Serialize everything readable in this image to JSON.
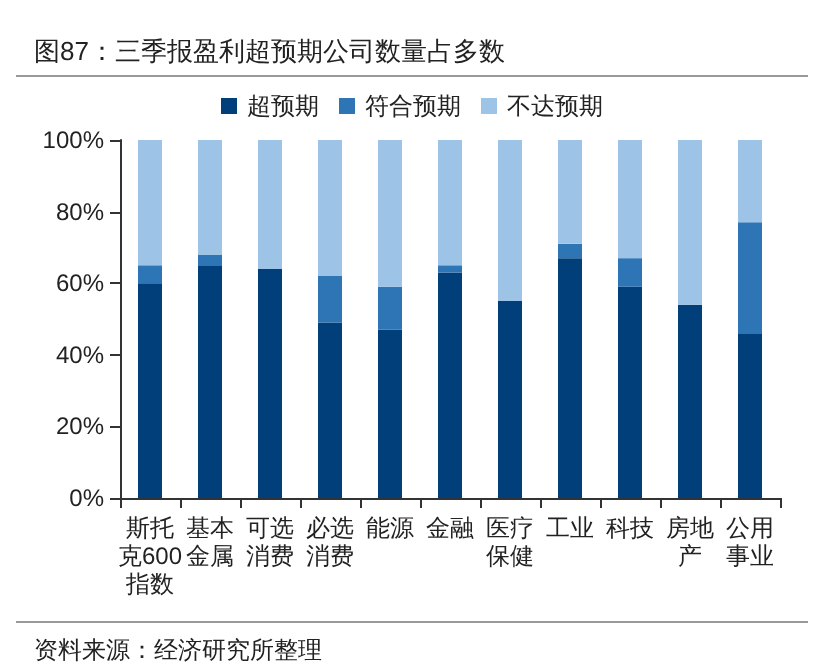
{
  "chart_data": {
    "type": "bar",
    "title": "图87：三季报盈利超预期公司数量占多数",
    "stacked": true,
    "categories": [
      "斯托克600指数",
      "基本金属",
      "可选消费",
      "必选消费",
      "能源",
      "金融",
      "医疗保健",
      "工业",
      "科技",
      "房地产",
      "公用事业"
    ],
    "series": [
      {
        "name": "超预期",
        "color": "#003f7a",
        "values": [
          60,
          65,
          64,
          49,
          47,
          63,
          55,
          67,
          59,
          54,
          46
        ]
      },
      {
        "name": "符合预期",
        "color": "#2e75b6",
        "values": [
          5,
          3,
          0,
          13,
          12,
          2,
          0,
          4,
          8,
          0,
          31
        ]
      },
      {
        "name": "不达预期",
        "color": "#9dc3e6",
        "values": [
          35,
          32,
          36,
          38,
          41,
          35,
          45,
          29,
          33,
          46,
          23
        ]
      }
    ],
    "ylim": [
      0,
      100
    ],
    "yticks": [
      {
        "value": 0,
        "label": "0%"
      },
      {
        "value": 20,
        "label": "20%"
      },
      {
        "value": 40,
        "label": "40%"
      },
      {
        "value": 60,
        "label": "60%"
      },
      {
        "value": 80,
        "label": "80%"
      },
      {
        "value": 100,
        "label": "100%"
      }
    ],
    "grid": false,
    "legend": "top",
    "annotations": [
      "资料来源：经济研究所整理"
    ]
  }
}
